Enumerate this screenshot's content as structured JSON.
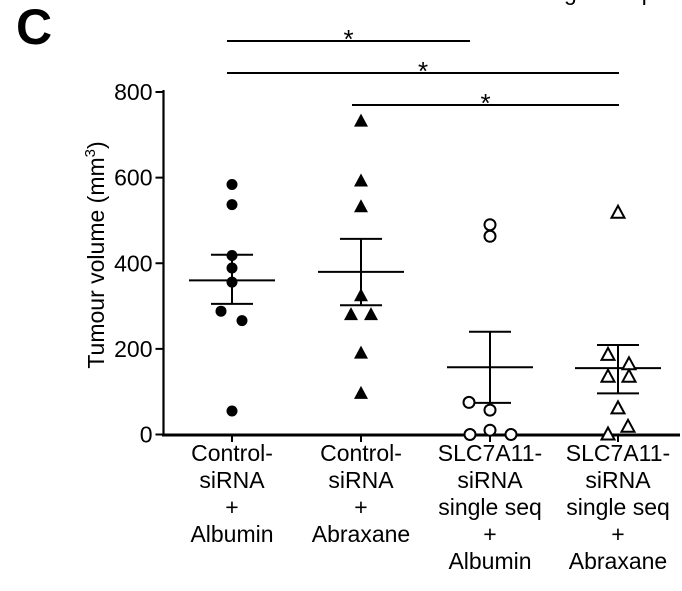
{
  "panel_label": "C",
  "colors": {
    "ink": "#000000",
    "background": "#ffffff"
  },
  "cropped_fragments": {
    "left": "g",
    "right": "q"
  },
  "chart_data": {
    "type": "scatter",
    "title": "",
    "xlabel": "",
    "ylabel": "Tumour volume (mm³)",
    "ylabel_parts": {
      "base": "Tumour volume (mm",
      "superscript": "3",
      "suffix": ")"
    },
    "ylim": [
      0,
      800
    ],
    "yticks": [
      0,
      200,
      400,
      600,
      800
    ],
    "grid": false,
    "legend": "none",
    "groups": [
      {
        "label_lines": [
          "Control-",
          "siRNA",
          "+",
          "Albumin"
        ],
        "marker": "filled-circle",
        "points": [
          {
            "value": 584,
            "x_offset": 0
          },
          {
            "value": 537,
            "x_offset": 0
          },
          {
            "value": 418,
            "x_offset": 0
          },
          {
            "value": 389,
            "x_offset": 0
          },
          {
            "value": 356,
            "x_offset": 0
          },
          {
            "value": 288,
            "x_offset": -11
          },
          {
            "value": 266,
            "x_offset": 10
          },
          {
            "value": 55,
            "x_offset": 0
          }
        ],
        "mean": 360,
        "err_upper": 420,
        "err_lower": 305
      },
      {
        "label_lines": [
          "Control-",
          "siRNA",
          "+",
          "Abraxane"
        ],
        "marker": "filled-triangle",
        "points": [
          {
            "value": 732,
            "x_offset": 0
          },
          {
            "value": 592,
            "x_offset": 0
          },
          {
            "value": 532,
            "x_offset": 0
          },
          {
            "value": 324,
            "x_offset": 0
          },
          {
            "value": 280,
            "x_offset": -10
          },
          {
            "value": 280,
            "x_offset": 10
          },
          {
            "value": 190,
            "x_offset": 0
          },
          {
            "value": 96,
            "x_offset": 0
          }
        ],
        "mean": 380,
        "err_upper": 457,
        "err_lower": 302
      },
      {
        "label_lines": [
          "SLC7A11-",
          "siRNA",
          "single seq",
          "+",
          "Albumin"
        ],
        "marker": "open-circle",
        "points": [
          {
            "value": 490,
            "x_offset": 0
          },
          {
            "value": 463,
            "x_offset": 0
          },
          {
            "value": 75,
            "x_offset": -21
          },
          {
            "value": 57,
            "x_offset": 0
          },
          {
            "value": 10,
            "x_offset": 0
          },
          {
            "value": 0,
            "x_offset": -20
          },
          {
            "value": 0,
            "x_offset": 21
          }
        ],
        "mean": 157,
        "err_upper": 240,
        "err_lower": 74
      },
      {
        "label_lines": [
          "SLC7A11-",
          "siRNA",
          "single seq",
          "+",
          "Abraxane"
        ],
        "marker": "open-triangle",
        "points": [
          {
            "value": 518,
            "x_offset": 0
          },
          {
            "value": 186,
            "x_offset": -10
          },
          {
            "value": 164,
            "x_offset": 11
          },
          {
            "value": 135,
            "x_offset": -10
          },
          {
            "value": 135,
            "x_offset": 11
          },
          {
            "value": 61,
            "x_offset": 0
          },
          {
            "value": 18,
            "x_offset": 10
          },
          {
            "value": 0,
            "x_offset": -10
          }
        ],
        "mean": 155,
        "err_upper": 209,
        "err_lower": 96
      }
    ],
    "significance_bars": [
      {
        "from_group": 0,
        "to_group": 2,
        "label": "*"
      },
      {
        "from_group": 0,
        "to_group": 3,
        "label": "*"
      },
      {
        "from_group": 1,
        "to_group": 3,
        "label": "*"
      }
    ]
  }
}
